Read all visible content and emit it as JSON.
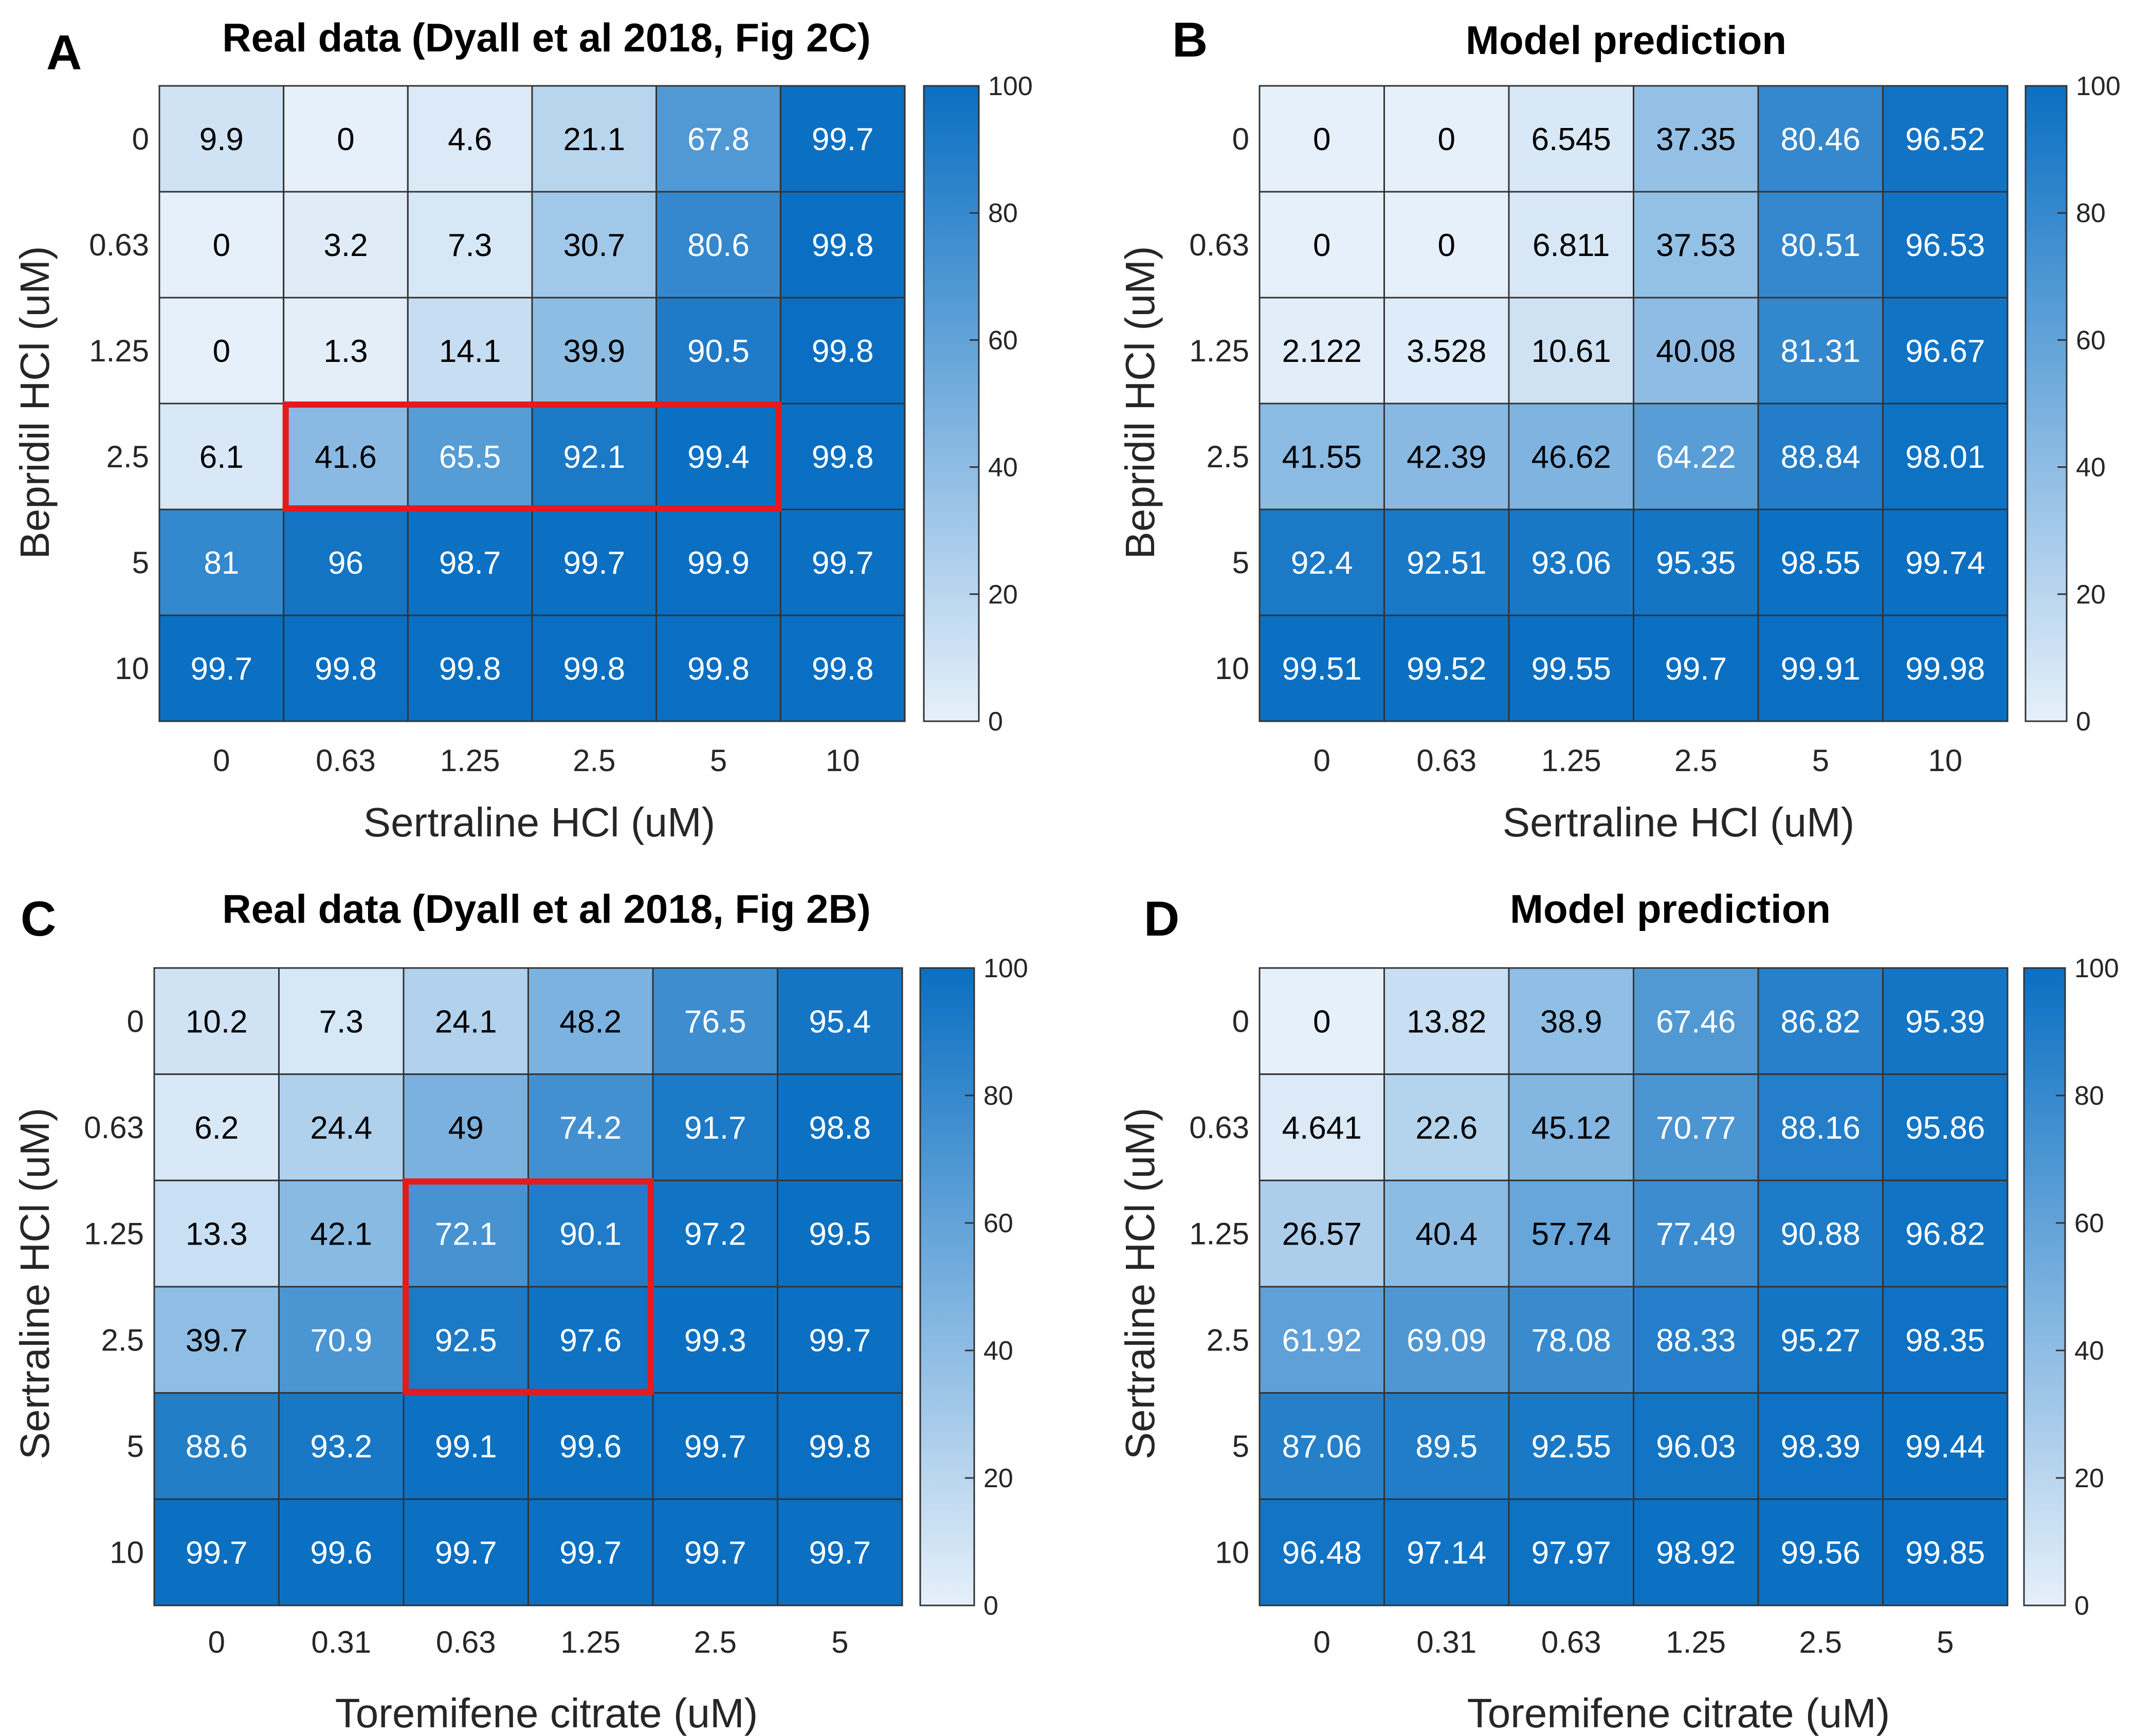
{
  "chart_data": [
    {
      "type": "heatmap",
      "panel": "A",
      "title": "Real data (Dyall et al 2018, Fig 2C)",
      "xlabel": "Sertraline HCl (uM)",
      "ylabel": "Bepridil HCl (uM)",
      "x_categories": [
        "0",
        "0.63",
        "1.25",
        "2.5",
        "5",
        "10"
      ],
      "y_categories": [
        "0",
        "0.63",
        "1.25",
        "2.5",
        "5",
        "10"
      ],
      "values": [
        [
          "9.9",
          "0",
          "4.6",
          "21.1",
          "67.8",
          "99.7"
        ],
        [
          "0",
          "3.2",
          "7.3",
          "30.7",
          "80.6",
          "99.8"
        ],
        [
          "0",
          "1.3",
          "14.1",
          "39.9",
          "90.5",
          "99.8"
        ],
        [
          "6.1",
          "41.6",
          "65.5",
          "92.1",
          "99.4",
          "99.8"
        ],
        [
          "81",
          "96",
          "98.7",
          "99.7",
          "99.9",
          "99.7"
        ],
        [
          "99.7",
          "99.8",
          "99.8",
          "99.8",
          "99.8",
          "99.8"
        ]
      ],
      "highlight": {
        "rows": [
          3,
          3
        ],
        "cols": [
          1,
          4
        ],
        "color": "#e41a1c"
      },
      "colorbar": {
        "range": [
          0,
          100
        ],
        "ticks": [
          "0",
          "20",
          "40",
          "60",
          "80",
          "100"
        ]
      }
    },
    {
      "type": "heatmap",
      "panel": "B",
      "title": "Model prediction",
      "xlabel": "Sertraline HCl (uM)",
      "ylabel": "Bepridil HCl (uM)",
      "x_categories": [
        "0",
        "0.63",
        "1.25",
        "2.5",
        "5",
        "10"
      ],
      "y_categories": [
        "0",
        "0.63",
        "1.25",
        "2.5",
        "5",
        "10"
      ],
      "values": [
        [
          "0",
          "0",
          "6.545",
          "37.35",
          "80.46",
          "96.52"
        ],
        [
          "0",
          "0",
          "6.811",
          "37.53",
          "80.51",
          "96.53"
        ],
        [
          "2.122",
          "3.528",
          "10.61",
          "40.08",
          "81.31",
          "96.67"
        ],
        [
          "41.55",
          "42.39",
          "46.62",
          "64.22",
          "88.84",
          "98.01"
        ],
        [
          "92.4",
          "92.51",
          "93.06",
          "95.35",
          "98.55",
          "99.74"
        ],
        [
          "99.51",
          "99.52",
          "99.55",
          "99.7",
          "99.91",
          "99.98"
        ]
      ],
      "highlight": null,
      "colorbar": {
        "range": [
          0,
          100
        ],
        "ticks": [
          "0",
          "20",
          "40",
          "60",
          "80",
          "100"
        ]
      }
    },
    {
      "type": "heatmap",
      "panel": "C",
      "title": "Real data (Dyall et al 2018, Fig 2B)",
      "xlabel": "Toremifene citrate (uM)",
      "ylabel": "Sertraline HCl (uM)",
      "x_categories": [
        "0",
        "0.31",
        "0.63",
        "1.25",
        "2.5",
        "5"
      ],
      "y_categories": [
        "0",
        "0.63",
        "1.25",
        "2.5",
        "5",
        "10"
      ],
      "values": [
        [
          "10.2",
          "7.3",
          "24.1",
          "48.2",
          "76.5",
          "95.4"
        ],
        [
          "6.2",
          "24.4",
          "49",
          "74.2",
          "91.7",
          "98.8"
        ],
        [
          "13.3",
          "42.1",
          "72.1",
          "90.1",
          "97.2",
          "99.5"
        ],
        [
          "39.7",
          "70.9",
          "92.5",
          "97.6",
          "99.3",
          "99.7"
        ],
        [
          "88.6",
          "93.2",
          "99.1",
          "99.6",
          "99.7",
          "99.8"
        ],
        [
          "99.7",
          "99.6",
          "99.7",
          "99.7",
          "99.7",
          "99.7"
        ]
      ],
      "highlight": {
        "rows": [
          2,
          3
        ],
        "cols": [
          2,
          3
        ],
        "color": "#e41a1c"
      },
      "colorbar": {
        "range": [
          0,
          100
        ],
        "ticks": [
          "0",
          "20",
          "40",
          "60",
          "80",
          "100"
        ]
      }
    },
    {
      "type": "heatmap",
      "panel": "D",
      "title": "Model prediction",
      "xlabel": "Toremifene citrate (uM)",
      "ylabel": "Sertraline HCl (uM)",
      "x_categories": [
        "0",
        "0.31",
        "0.63",
        "1.25",
        "2.5",
        "5"
      ],
      "y_categories": [
        "0",
        "0.63",
        "1.25",
        "2.5",
        "5",
        "10"
      ],
      "values": [
        [
          "0",
          "13.82",
          "38.9",
          "67.46",
          "86.82",
          "95.39"
        ],
        [
          "4.641",
          "22.6",
          "45.12",
          "70.77",
          "88.16",
          "95.86"
        ],
        [
          "26.57",
          "40.4",
          "57.74",
          "77.49",
          "90.88",
          "96.82"
        ],
        [
          "61.92",
          "69.09",
          "78.08",
          "88.33",
          "95.27",
          "98.35"
        ],
        [
          "87.06",
          "89.5",
          "92.55",
          "96.03",
          "98.39",
          "99.44"
        ],
        [
          "96.48",
          "97.14",
          "97.97",
          "98.92",
          "99.56",
          "99.85"
        ]
      ],
      "highlight": null,
      "colorbar": {
        "range": [
          0,
          100
        ],
        "ticks": [
          "0",
          "20",
          "40",
          "60",
          "80",
          "100"
        ]
      }
    }
  ],
  "colors": {
    "low": "#e6f0fa",
    "high": "#0a6fc2",
    "grid": "#333333",
    "highlight": "#e41a1c",
    "text_dark": "#000000",
    "text_light": "#ffffff"
  }
}
